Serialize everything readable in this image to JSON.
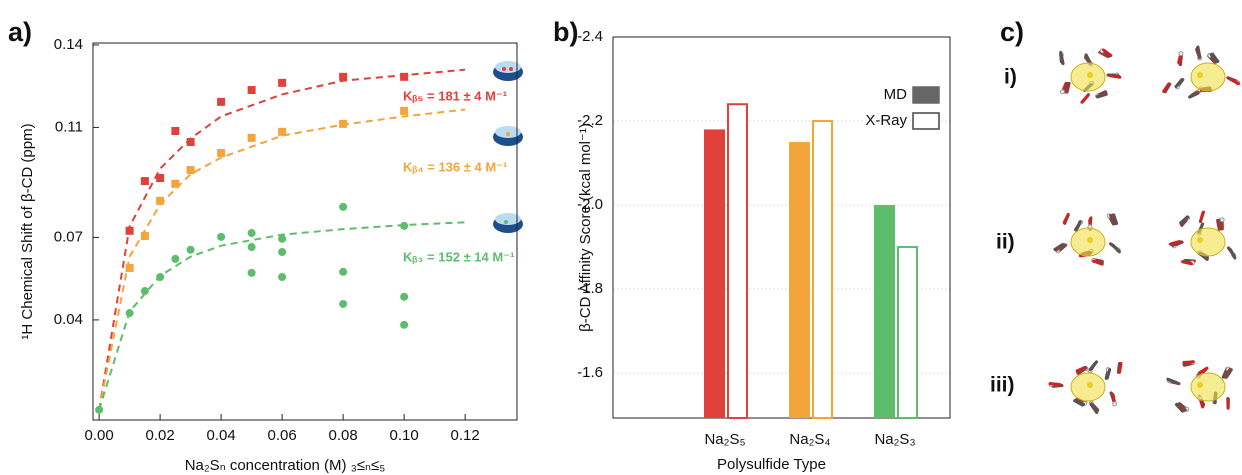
{
  "chart_data": [
    {
      "type": "scatter",
      "panel_label": "a)",
      "xlabel": "Na₂Sₙ concentration (M) ₃≤ₙ≤₅",
      "ylabel": "¹H Chemical Shift of β-CD (ppm)",
      "xlim": [
        -0.002,
        0.137
      ],
      "ylim": [
        0.0036,
        0.1407
      ],
      "xticks": [
        {
          "value": 0,
          "label": "0.00"
        },
        0.02,
        0.04,
        0.06,
        0.08,
        {
          "value": 0.1,
          "label": "0.10"
        },
        0.12
      ],
      "yticks": [
        0.14,
        0.11,
        0.07,
        0.04
      ],
      "series": [
        {
          "color": "#e2403a",
          "marker": "square",
          "x": [
            0.01,
            0.015,
            0.02,
            0.025,
            0.03,
            0.04,
            0.05,
            0.06,
            0.08,
            0.1
          ],
          "values": [
            0.0724,
            0.0905,
            0.0916,
            0.1087,
            0.1047,
            0.1193,
            0.1236,
            0.1262,
            0.1284,
            0.1284
          ]
        },
        {
          "color": "#f3a43b",
          "marker": "square",
          "x": [
            0.01,
            0.015,
            0.02,
            0.025,
            0.03,
            0.04,
            0.05,
            0.06,
            0.08,
            0.1
          ],
          "values": [
            0.0589,
            0.0705,
            0.0833,
            0.0895,
            0.0945,
            0.1007,
            0.1062,
            0.1084,
            0.1113,
            0.116
          ]
        },
        {
          "color": "#5dbd6b",
          "marker": "circle",
          "x": [
            0,
            0.01,
            0.015,
            0.02,
            0.025,
            0.03,
            0.04,
            0.05,
            0.05,
            0.05,
            0.06,
            0.06,
            0.06,
            0.08,
            0.08,
            0.08,
            0.1,
            0.1,
            0.1
          ],
          "values": [
            0.0073,
            0.0425,
            0.0505,
            0.0556,
            0.0622,
            0.0655,
            0.0702,
            0.0716,
            0.0665,
            0.0571,
            0.0695,
            0.0647,
            0.0556,
            0.0811,
            0.0575,
            0.0458,
            0.0742,
            0.0484,
            0.0382
          ]
        }
      ],
      "fits": [
        {
          "color": "#e2403a",
          "x": [
            0,
            0.01,
            0.02,
            0.03,
            0.04,
            0.06,
            0.08,
            0.1,
            0.12
          ],
          "values": [
            0.0073,
            0.074,
            0.095,
            0.106,
            0.114,
            0.122,
            0.127,
            0.129,
            0.131
          ]
        },
        {
          "color": "#f3a43b",
          "x": [
            0,
            0.01,
            0.02,
            0.03,
            0.04,
            0.06,
            0.08,
            0.1,
            0.12
          ],
          "values": [
            0.0073,
            0.063,
            0.082,
            0.093,
            0.099,
            0.107,
            0.111,
            0.114,
            0.1165
          ]
        },
        {
          "color": "#5dbd6b",
          "x": [
            0,
            0.01,
            0.02,
            0.03,
            0.04,
            0.06,
            0.08,
            0.1,
            0.12
          ],
          "values": [
            0.0073,
            0.043,
            0.056,
            0.063,
            0.067,
            0.071,
            0.073,
            0.0745,
            0.0755
          ]
        }
      ],
      "annotations": [
        {
          "text": "Kᵦ₅ = 181 ± 4 M⁻¹",
          "color": "#e2403a"
        },
        {
          "text": "Kᵦ₄ = 136 ± 4 M⁻¹",
          "color": "#f3a43b"
        },
        {
          "text": "Kᵦ₃ = 152 ± 14 M⁻¹",
          "color": "#5dbd6b"
        }
      ]
    },
    {
      "type": "bar",
      "panel_label": "b)",
      "xlabel": "Polysulfide Type",
      "ylabel": "β-CD Affinity Score (kcal mol⁻¹)",
      "categories": [
        "Na₂S₅",
        "Na₂S₄",
        "Na₂S₃"
      ],
      "colors": [
        "#e2403a",
        "#f3a43b",
        "#5dbd6b"
      ],
      "ylim": [
        -1.493,
        -2.4
      ],
      "yticks": [
        -2.4,
        -2.2,
        {
          "value": -2,
          "label": "-2.0"
        },
        -1.8,
        -1.6
      ],
      "grid": true,
      "legend": "upper right",
      "series": [
        {
          "name": "MD",
          "style": "filled",
          "color": "#666666",
          "values": [
            -2.18,
            -2.15,
            -2.0
          ]
        },
        {
          "name": "X-Ray",
          "style": "outline",
          "color": "#444444",
          "values": [
            -2.24,
            -2.2,
            -1.9
          ]
        }
      ]
    }
  ],
  "panel_c": {
    "label": "c)",
    "rows": [
      "i)",
      "ii)",
      "iii)"
    ]
  }
}
